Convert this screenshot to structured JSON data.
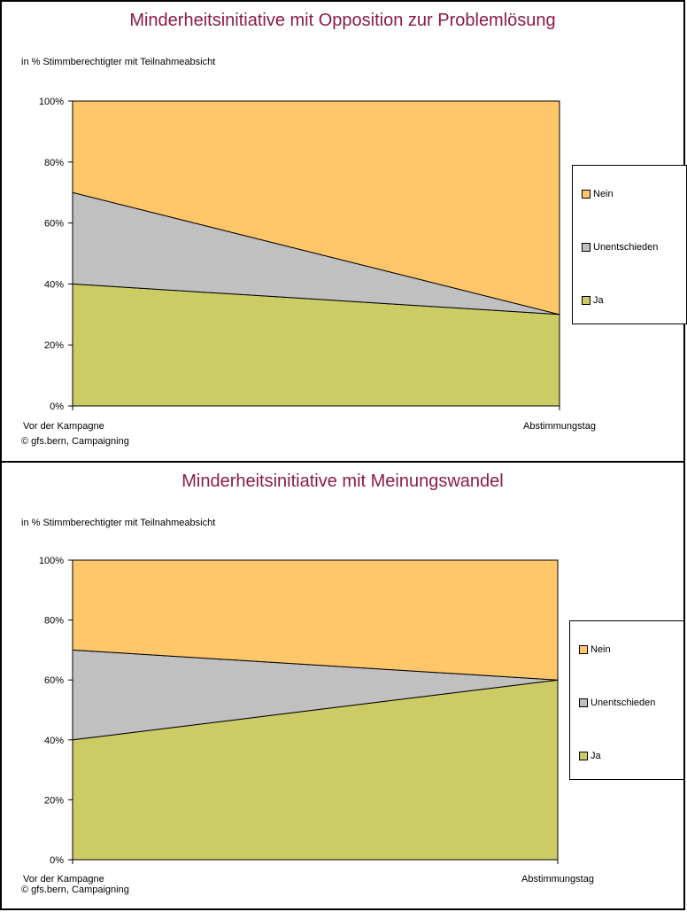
{
  "colors": {
    "Ja": "#cccc66",
    "Unentschieden": "#c0c0c0",
    "Nein": "#ffc76a",
    "title": "#8b1a4a"
  },
  "chart_data": [
    {
      "type": "area",
      "title": "Minderheitsinitiative mit Opposition zur Problemlösung",
      "subtitle": "in %  Stimmberechtigter mit Teilnahmeabsicht",
      "credit": "© gfs.bern, Campaigning",
      "categories": [
        "Vor der Kampagne",
        "Abstimmungstag"
      ],
      "y_ticks": [
        "0%",
        "20%",
        "40%",
        "60%",
        "80%",
        "100%"
      ],
      "ylim": [
        0,
        100
      ],
      "stacked": true,
      "series": [
        {
          "name": "Ja",
          "values": [
            40,
            30
          ]
        },
        {
          "name": "Unentschieden",
          "values": [
            30,
            0
          ]
        },
        {
          "name": "Nein",
          "values": [
            30,
            70
          ]
        }
      ],
      "legend": [
        "Nein",
        "Unentschieden",
        "Ja"
      ]
    },
    {
      "type": "area",
      "title": "Minderheitsinitiative mit Meinungswandel",
      "subtitle": "in %  Stimmberechtigter mit Teilnahmeabsicht",
      "credit": "© gfs.bern, Campaigning",
      "categories": [
        "Vor der Kampagne",
        "Abstimmungstag"
      ],
      "y_ticks": [
        "0%",
        "20%",
        "40%",
        "60%",
        "80%",
        "100%"
      ],
      "ylim": [
        0,
        100
      ],
      "stacked": true,
      "series": [
        {
          "name": "Ja",
          "values": [
            40,
            60
          ]
        },
        {
          "name": "Unentschieden",
          "values": [
            30,
            0
          ]
        },
        {
          "name": "Nein",
          "values": [
            30,
            40
          ]
        }
      ],
      "legend": [
        "Nein",
        "Unentschieden",
        "Ja"
      ]
    }
  ]
}
